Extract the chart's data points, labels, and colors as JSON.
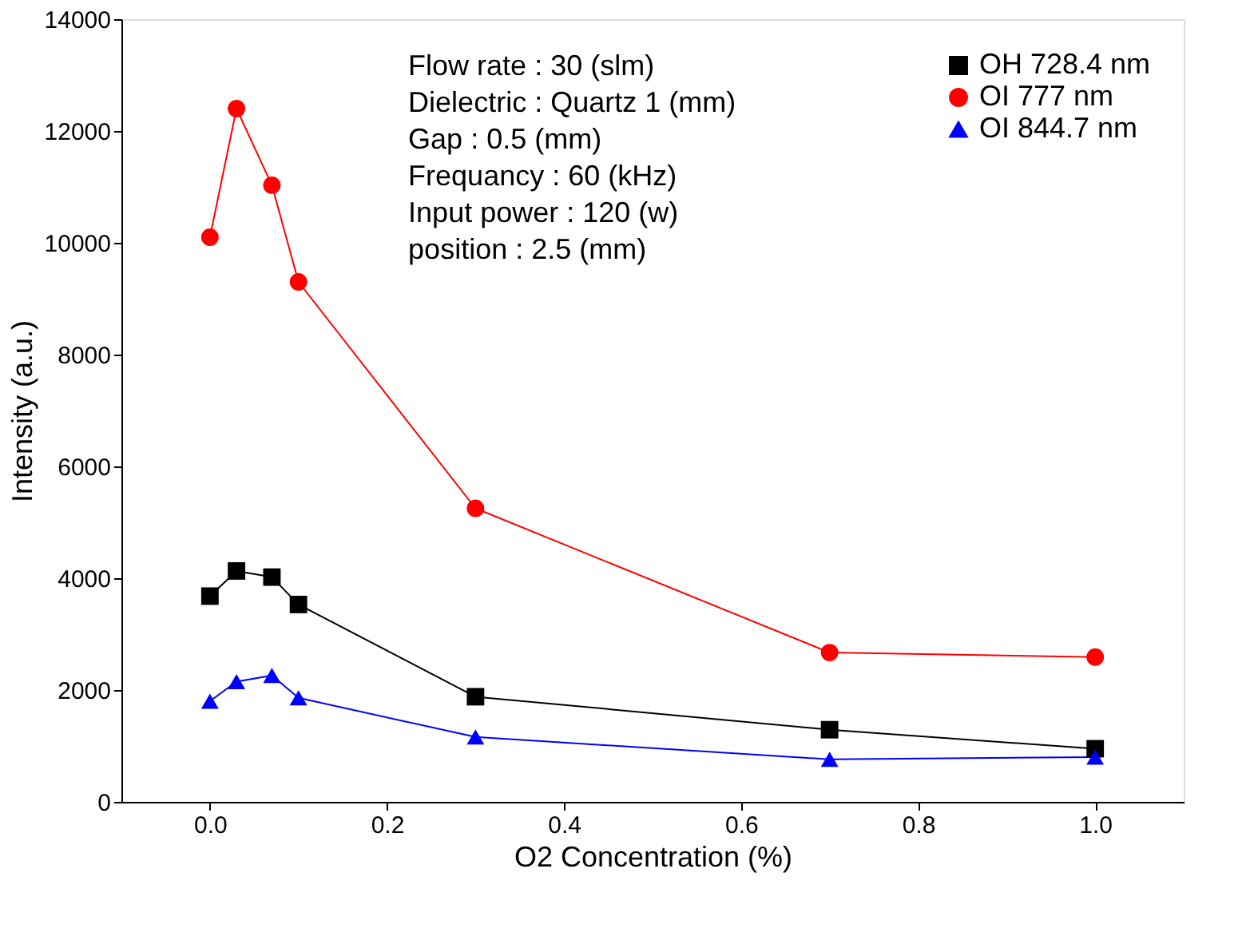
{
  "chart_data": {
    "type": "line",
    "xlabel": "O2 Concentration (%)",
    "ylabel": "Intensity (a.u.)",
    "x": [
      0,
      0.03,
      0.07,
      0.1,
      0.3,
      0.7,
      1.0
    ],
    "series": [
      {
        "name": "OH 728.4 nm",
        "color": "#000000",
        "marker": "square",
        "values": [
          3680,
          4130,
          4020,
          3530,
          1880,
          1290,
          950
        ]
      },
      {
        "name": "OI 777 nm",
        "color": "#ff0000",
        "marker": "circle",
        "values": [
          10100,
          12400,
          11030,
          9300,
          5250,
          2670,
          2590
        ]
      },
      {
        "name": "OI 844.7 nm",
        "color": "#0000ff",
        "marker": "triangle",
        "values": [
          1800,
          2150,
          2260,
          1860,
          1160,
          760,
          800
        ]
      }
    ],
    "xlim": [
      -0.1,
      1.1
    ],
    "xticks": [
      {
        "value": 0,
        "label": "0.0"
      },
      {
        "value": 0.2,
        "label": "0.2"
      },
      {
        "value": 0.4,
        "label": "0.4"
      },
      {
        "value": 0.6,
        "label": "0.6"
      },
      {
        "value": 0.8,
        "label": "0.8"
      },
      {
        "value": 1.0,
        "label": "1.0"
      }
    ],
    "ylim": [
      0,
      14000
    ],
    "yticks": [
      0,
      2000,
      4000,
      6000,
      8000,
      10000,
      12000,
      14000
    ],
    "legend": "top right",
    "grid": false,
    "annotations": [
      "Flow rate : 30 (slm)",
      "Dielectric : Quartz 1 (mm)",
      "Gap : 0.5 (mm)",
      "Frequancy : 60 (kHz)",
      "Input power : 120 (w)",
      "position : 2.5 (mm)"
    ]
  }
}
